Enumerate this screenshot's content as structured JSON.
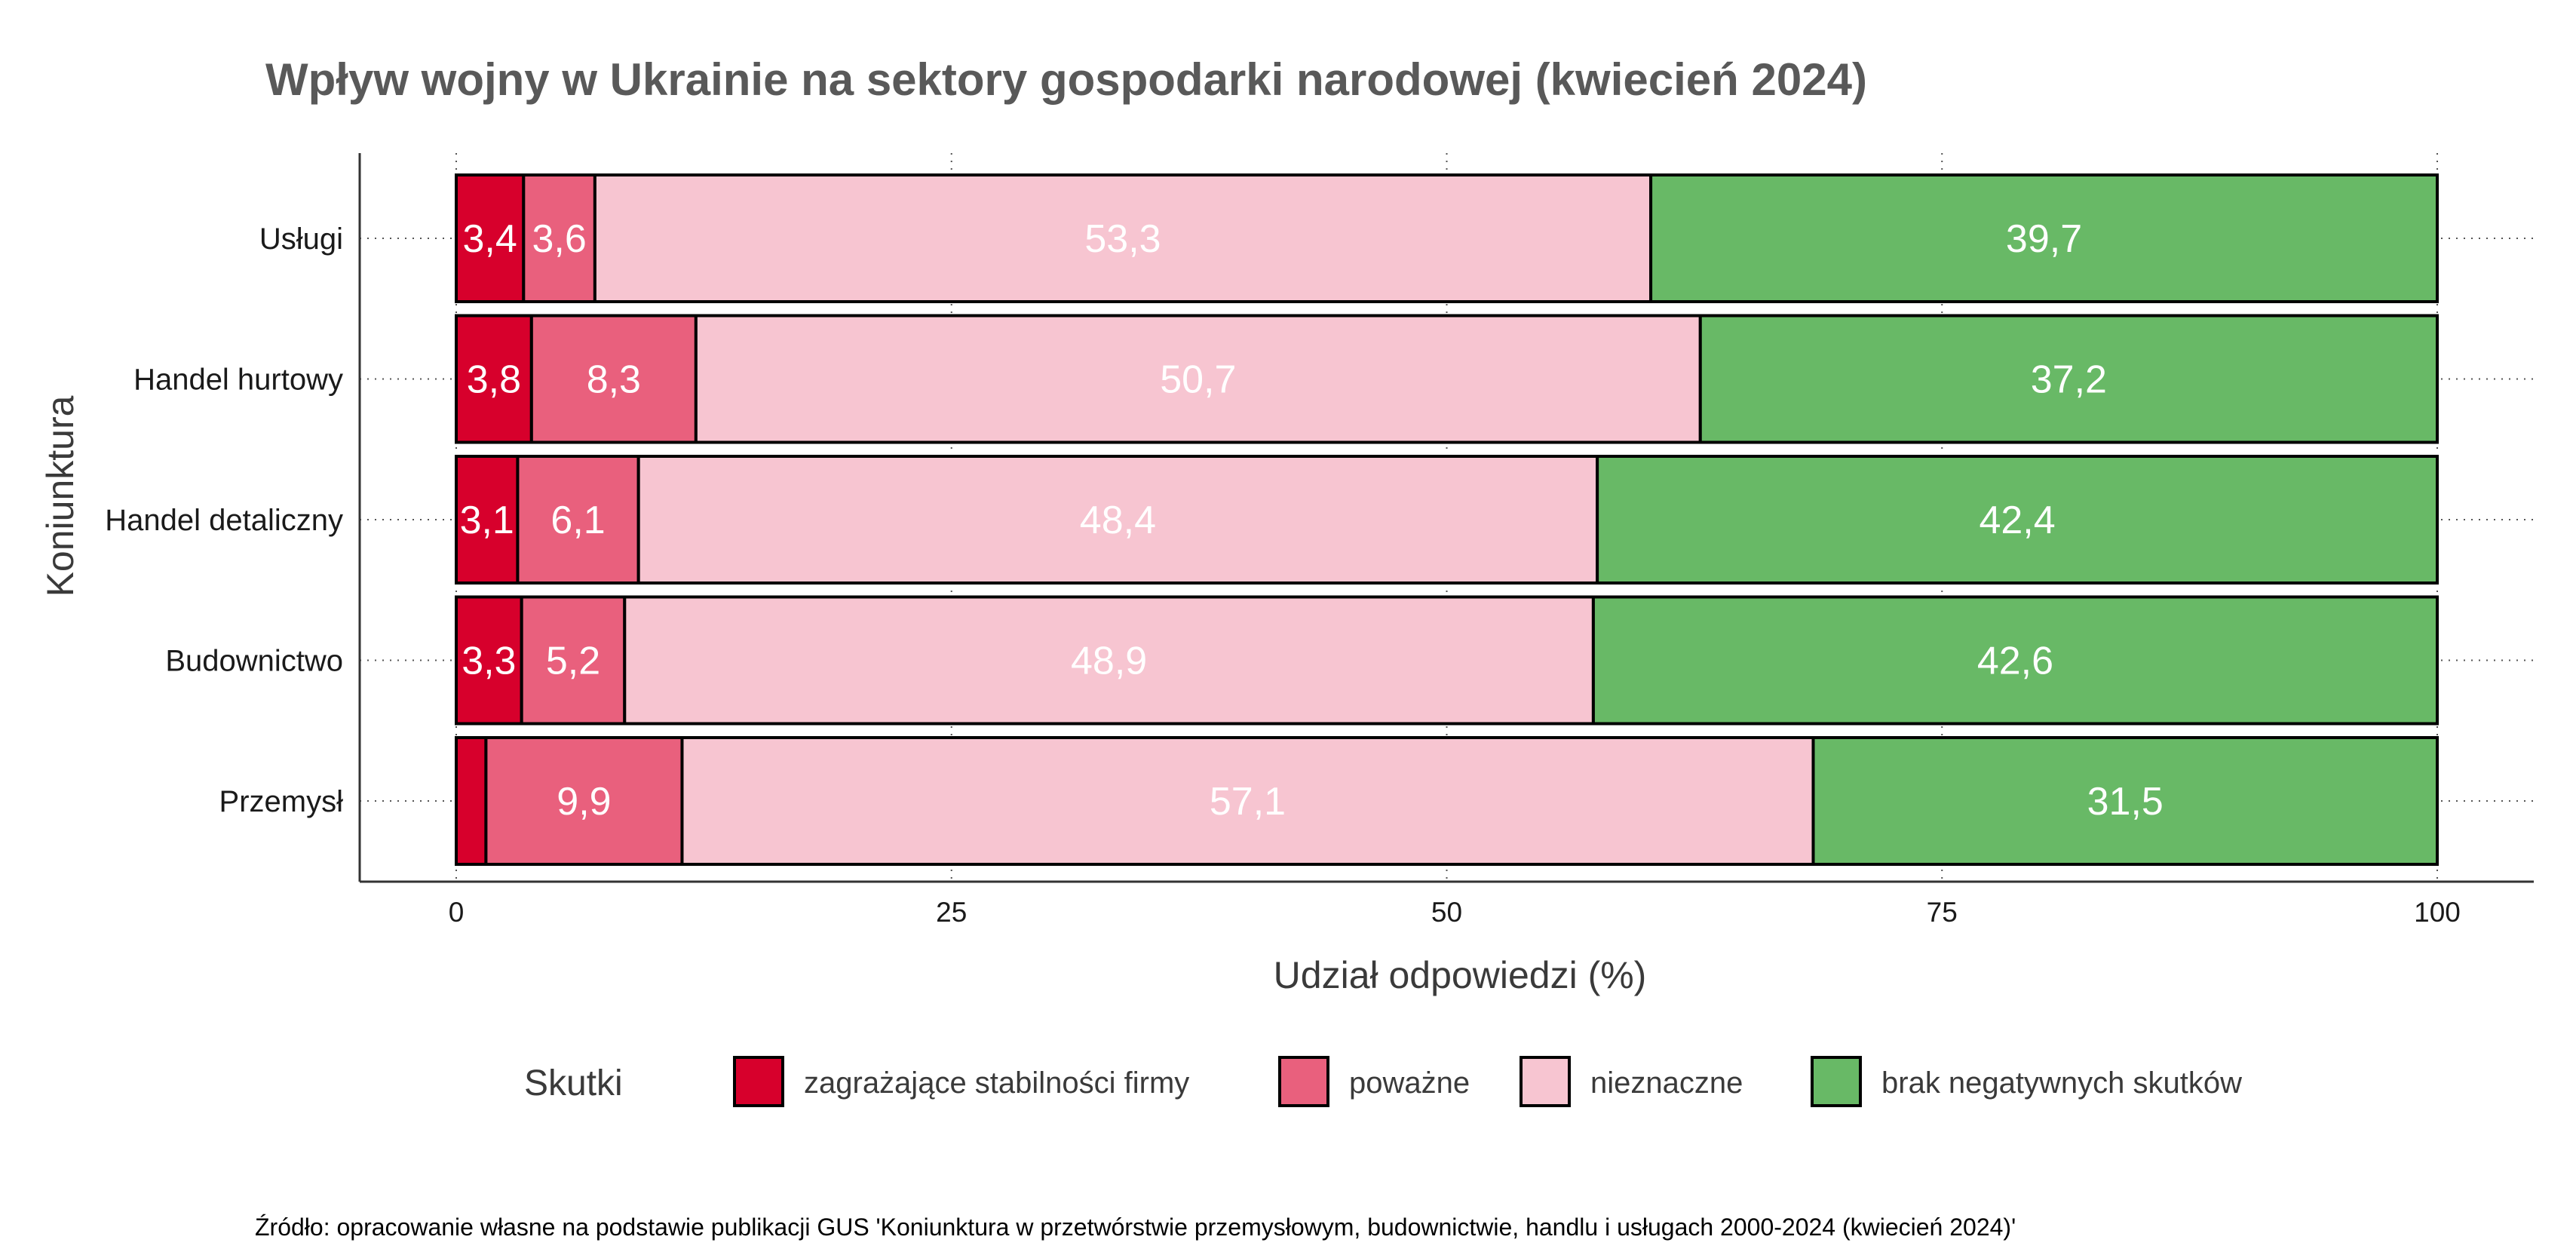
{
  "chart_data": {
    "type": "bar",
    "orientation": "horizontal",
    "stacked": true,
    "title": "Wpływ wojny w Ukrainie na sektory gospodarki narodowej (kwiecień 2024)",
    "xlabel": "Udział odpowiedzi (%)",
    "ylabel": "Koniunktura",
    "xlim": [
      0,
      100
    ],
    "xticks": [
      0,
      25,
      50,
      75,
      100
    ],
    "categories": [
      "Usługi",
      "Handel hurtowy",
      "Handel detaliczny",
      "Budownictwo",
      "Przemysł"
    ],
    "series": [
      {
        "name": "zagrażające stabilności firmy",
        "color": "#d7002c",
        "values": [
          3.4,
          3.8,
          3.1,
          3.3,
          1.5
        ],
        "labels": [
          "3,4",
          "3,8",
          "3,1",
          "3,3",
          ""
        ]
      },
      {
        "name": "poważne",
        "color": "#e9607d",
        "values": [
          3.6,
          8.3,
          6.1,
          5.2,
          9.9
        ],
        "labels": [
          "3,6",
          "8,3",
          "6,1",
          "5,2",
          "9,9"
        ]
      },
      {
        "name": "nieznaczne",
        "color": "#f7c5d1",
        "values": [
          53.3,
          50.7,
          48.4,
          48.9,
          57.1
        ],
        "labels": [
          "53,3",
          "50,7",
          "48,4",
          "48,9",
          "57,1"
        ]
      },
      {
        "name": "brak negatywnych skutków",
        "color": "#68b966",
        "values": [
          39.7,
          37.2,
          42.4,
          42.6,
          31.5
        ],
        "labels": [
          "39,7",
          "37,2",
          "42,4",
          "42,6",
          "31,5"
        ]
      }
    ],
    "legend_title": "Skutki",
    "legend_position": "bottom",
    "grid": "dotted"
  },
  "source_note": "Źródło: opracowanie własne na podstawie publikacji GUS 'Koniunktura w przetwórstwie przemysłowym, budownictwie, handlu i usługach 2000-2024 (kwiecień 2024)'"
}
